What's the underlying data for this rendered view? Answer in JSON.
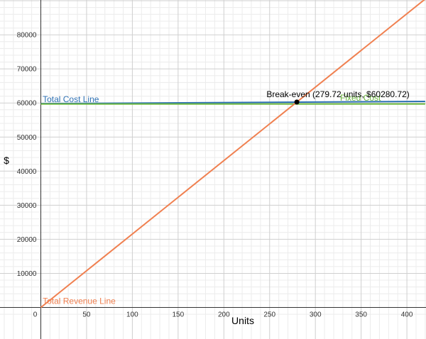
{
  "chart_data": {
    "type": "line",
    "xlabel": "Units",
    "ylabel": "$",
    "xlim": [
      -45,
      420
    ],
    "ylim": [
      -3500,
      90000
    ],
    "x_ticks": [
      0,
      50,
      100,
      150,
      200,
      250,
      300,
      350,
      400
    ],
    "y_ticks": [
      10000,
      20000,
      30000,
      40000,
      50000,
      60000,
      70000,
      80000
    ],
    "grid": true,
    "colors": {
      "total_cost": "#2d70b3",
      "fixed_cost": "#6cb83f",
      "revenue": "#f08050",
      "point": "#000000"
    },
    "series": [
      {
        "name": "Total Cost Line",
        "x": [
          0,
          420
        ],
        "y": [
          59800,
          60450
        ]
      },
      {
        "name": "Fixed Cost",
        "x": [
          0,
          420
        ],
        "y": [
          59700,
          59700
        ]
      },
      {
        "name": "Total Revenue Line",
        "x": [
          0,
          420
        ],
        "y": [
          0,
          90500
        ]
      }
    ],
    "annotations": [
      {
        "text": "Break-even (279.72 units, $60280.72)",
        "x": 279.72,
        "y": 60280.72
      }
    ]
  }
}
